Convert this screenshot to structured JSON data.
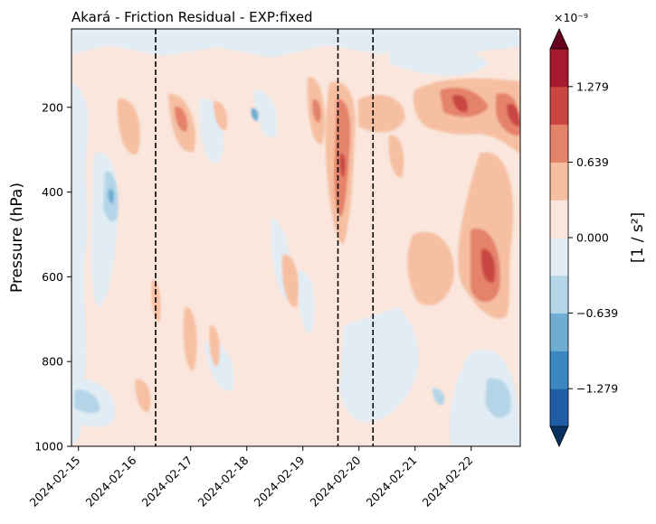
{
  "chart_data": {
    "type": "heatmap",
    "title": "Akará - Friction Residual - EXP:fixed",
    "ylabel": "Pressure (hPa)",
    "xlabel": "",
    "x_tick_labels": [
      "2024-02-15",
      "2024-02-16",
      "2024-02-17",
      "2024-02-18",
      "2024-02-19",
      "2024-02-20",
      "2024-02-21",
      "2024-02-22"
    ],
    "x_range": [
      "2024-02-14 21:00",
      "2024-02-22 21:00"
    ],
    "y_tick_labels": [
      "200",
      "400",
      "600",
      "800",
      "1000"
    ],
    "y_ticks": [
      200,
      400,
      600,
      800,
      1000
    ],
    "ylim": [
      1000,
      15
    ],
    "y_inverted": true,
    "vertical_lines": [
      "2024-02-16 09:00",
      "2024-02-19 15:00",
      "2024-02-20 06:00"
    ],
    "colorbar": {
      "label": "[1 / s²]",
      "exponent_label": "×10⁻⁹",
      "tick_labels": [
        "−1.279",
        "−0.639",
        "0.000",
        "0.639",
        "1.279"
      ],
      "tick_values": [
        -1.279e-09,
        -6.39e-10,
        0,
        6.39e-10,
        1.279e-09
      ],
      "levels": [
        -1.599e-09,
        -1.279e-09,
        -9.59e-10,
        -6.39e-10,
        -3.2e-10,
        0,
        3.2e-10,
        6.39e-10,
        9.59e-10,
        1.279e-09,
        1.599e-09
      ],
      "colors": [
        "#053061",
        "#1f5ea6",
        "#3b87c1",
        "#6fadd2",
        "#b4d5e8",
        "#e1ecf4",
        "#fae6dc",
        "#f6bfa2",
        "#e4826a",
        "#c94742",
        "#a51a2d",
        "#67001f"
      ],
      "extend": "both"
    },
    "features": [
      {
        "t": "2024-02-15 14:00",
        "p": 400,
        "value": -7e-10
      },
      {
        "t": "2024-02-15 00:00",
        "p": 200,
        "value": -2e-10
      },
      {
        "t": "2024-02-15 10:00",
        "p": 950,
        "value": -4e-10
      },
      {
        "t": "2024-02-16 04:00",
        "p": 280,
        "value": 4e-10
      },
      {
        "t": "2024-02-16 18:00",
        "p": 230,
        "value": 8e-10
      },
      {
        "t": "2024-02-17 10:00",
        "p": 720,
        "value": 4e-10
      },
      {
        "t": "2024-02-18 15:00",
        "p": 620,
        "value": 4e-10
      },
      {
        "t": "2024-02-19 04:00",
        "p": 200,
        "value": 8e-10
      },
      {
        "t": "2024-02-19 16:00",
        "p": 300,
        "value": 9e-10
      },
      {
        "t": "2024-02-19 16:00",
        "p": 380,
        "value": 1e-09
      },
      {
        "t": "2024-02-20 12:00",
        "p": 250,
        "value": 4e-10
      },
      {
        "t": "2024-02-21 08:00",
        "p": 620,
        "value": 4e-10
      },
      {
        "t": "2024-02-21 19:00",
        "p": 200,
        "value": 1.4e-09
      },
      {
        "t": "2024-02-22 08:00",
        "p": 580,
        "value": 1.2e-09
      },
      {
        "t": "2024-02-22 18:00",
        "p": 220,
        "value": 1.4e-09
      },
      {
        "t": "2024-02-21 12:00",
        "p": 880,
        "value": -4e-10
      },
      {
        "t": "2024-02-22 12:00",
        "p": 920,
        "value": -5e-10
      }
    ]
  }
}
